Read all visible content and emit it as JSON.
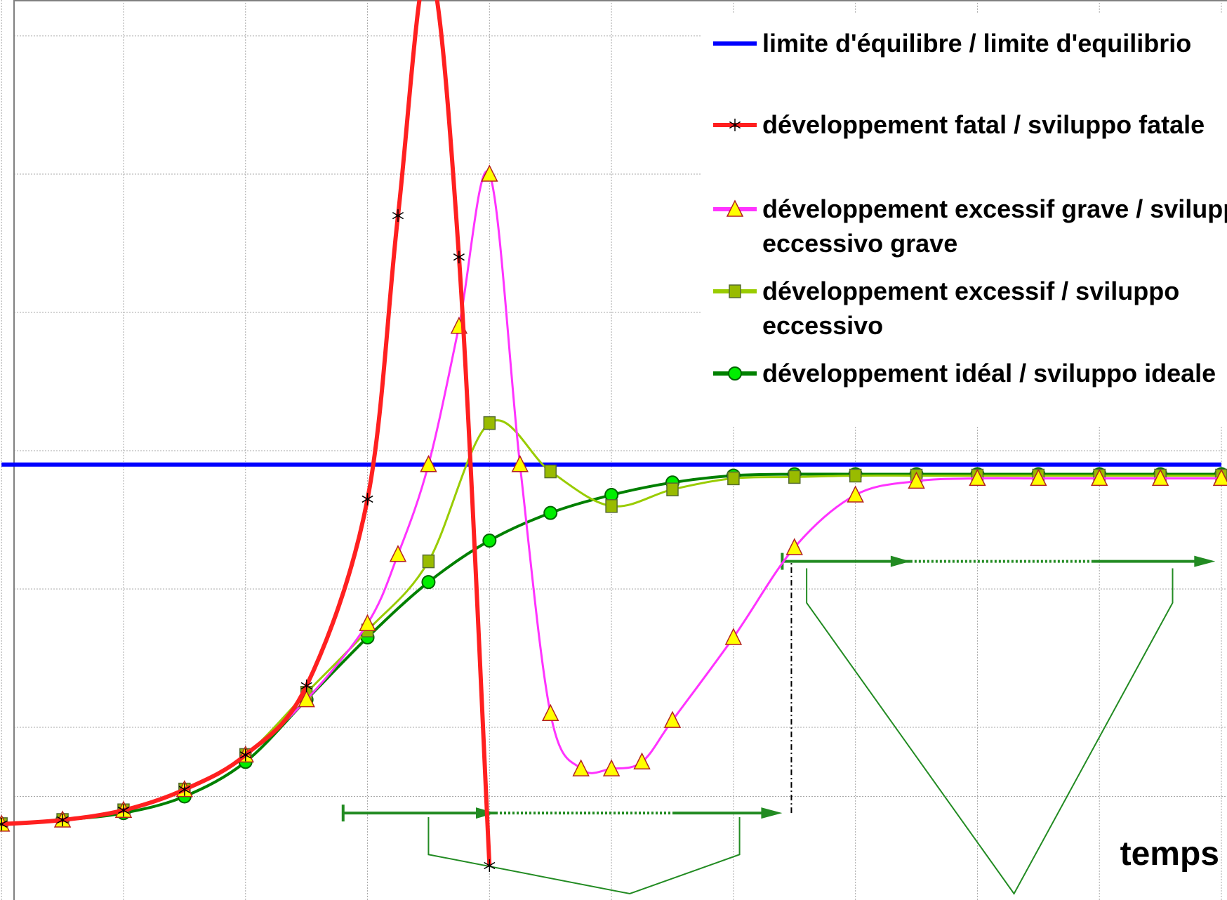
{
  "chart_data": {
    "type": "line",
    "title": "",
    "xlabel": "temps",
    "ylabel": "",
    "x_range": [
      0,
      20
    ],
    "y_range": [
      0,
      7
    ],
    "x_ticks": [
      0,
      2,
      4,
      6,
      8,
      10,
      12,
      14,
      16,
      18,
      20
    ],
    "y_ticks": [
      0.5,
      1,
      2,
      3,
      4,
      5,
      6
    ],
    "grid": true,
    "legend_position": "top-right",
    "series": [
      {
        "name": "limite d'équilibre / limite d'equilibrio",
        "color": "#0000ff",
        "marker": "none",
        "x": [
          0,
          20
        ],
        "y": [
          2.9,
          2.9
        ]
      },
      {
        "name": "développement fatal / sviluppo fatale",
        "color": "#ff2020",
        "marker": "star",
        "x": [
          0,
          1,
          2,
          3,
          4,
          5,
          6,
          6.5,
          7,
          7.5,
          8
        ],
        "y": [
          0.3,
          0.33,
          0.4,
          0.55,
          0.8,
          1.3,
          2.65,
          4.7,
          6.5,
          4.4,
          0
        ]
      },
      {
        "name": "développement excessif grave / sviluppo eccessivo grave",
        "color": "#ff33ff",
        "marker": "triangle",
        "x": [
          0,
          1,
          2,
          3,
          4,
          5,
          6,
          6.5,
          7,
          7.5,
          8,
          8.5,
          9,
          9.5,
          10,
          10.5,
          11,
          12,
          13,
          14,
          15,
          16,
          17,
          18,
          19,
          20
        ],
        "y": [
          0.3,
          0.33,
          0.4,
          0.55,
          0.8,
          1.2,
          1.75,
          2.25,
          2.9,
          3.9,
          5.0,
          2.9,
          1.1,
          0.7,
          0.7,
          0.75,
          1.05,
          1.65,
          2.3,
          2.68,
          2.78,
          2.8,
          2.8,
          2.8,
          2.8,
          2.8
        ]
      },
      {
        "name": "développement excessif / sviluppo eccessivo",
        "color": "#99cc00",
        "marker": "square",
        "x": [
          0,
          1,
          2,
          3,
          4,
          5,
          6,
          7,
          8,
          9,
          10,
          11,
          12,
          13,
          14,
          15,
          16,
          17,
          18,
          19,
          20
        ],
        "y": [
          0.3,
          0.33,
          0.4,
          0.55,
          0.8,
          1.25,
          1.7,
          2.2,
          3.2,
          2.85,
          2.6,
          2.72,
          2.8,
          2.81,
          2.82,
          2.82,
          2.82,
          2.82,
          2.82,
          2.82,
          2.82
        ]
      },
      {
        "name": "développement idéal / sviluppo ideale",
        "color": "#008000",
        "marker": "circle",
        "x": [
          0,
          1,
          2,
          3,
          4,
          5,
          6,
          7,
          8,
          9,
          10,
          11,
          12,
          13,
          14,
          15,
          16,
          17,
          18,
          19,
          20
        ],
        "y": [
          0.3,
          0.33,
          0.38,
          0.5,
          0.75,
          1.2,
          1.65,
          2.05,
          2.35,
          2.55,
          2.68,
          2.77,
          2.82,
          2.83,
          2.83,
          2.83,
          2.83,
          2.83,
          2.83,
          2.83,
          2.83
        ]
      }
    ],
    "annotations": {
      "color": "#228b22",
      "arrow_lower": {
        "x": [
          5.6,
          12.8
        ],
        "y": [
          0.38,
          0.38
        ],
        "dotted_x": [
          8.1,
          11.0
        ],
        "marker_x": 8.1
      },
      "arrow_upper": {
        "x": [
          12.8,
          19.9
        ],
        "y": [
          2.2,
          2.2
        ],
        "dotted_x": [
          14.9,
          17.9
        ],
        "marker_x": 14.9
      },
      "divider": {
        "x": 12.95,
        "y": [
          0.38,
          2.2
        ]
      },
      "brace_lower": {
        "x": [
          7.0,
          12.1
        ],
        "y_top": 0.35,
        "y_bottom": 0.08,
        "tip_x": 10.3,
        "tip_y": 0.0
      },
      "brace_upper": {
        "x": [
          13.2,
          19.2
        ],
        "y_top": 2.15,
        "y_bottom": 1.9,
        "tip_x": 16.6,
        "tip_y": 0.0
      }
    }
  }
}
